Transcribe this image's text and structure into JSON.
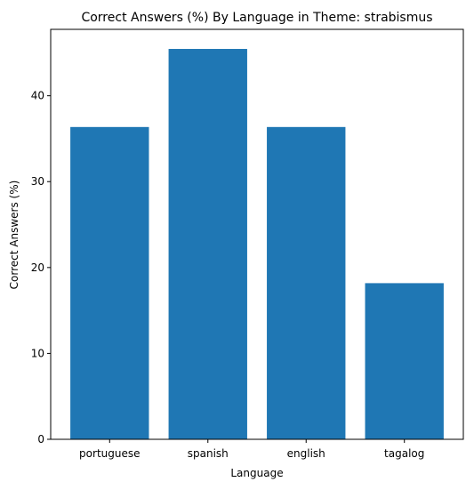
{
  "chart_data": {
    "type": "bar",
    "title": "Correct Answers (%) By Language in Theme: strabismus",
    "xlabel": "Language",
    "ylabel": "Correct Answers (%)",
    "categories": [
      "portuguese",
      "spanish",
      "english",
      "tagalog"
    ],
    "values": [
      36.36,
      45.45,
      36.36,
      18.18
    ],
    "ylim": [
      0,
      47.73
    ],
    "yticks": [
      0,
      10,
      20,
      30,
      40
    ],
    "bar_color": "#1f77b4",
    "grid": false,
    "legend": "none"
  }
}
